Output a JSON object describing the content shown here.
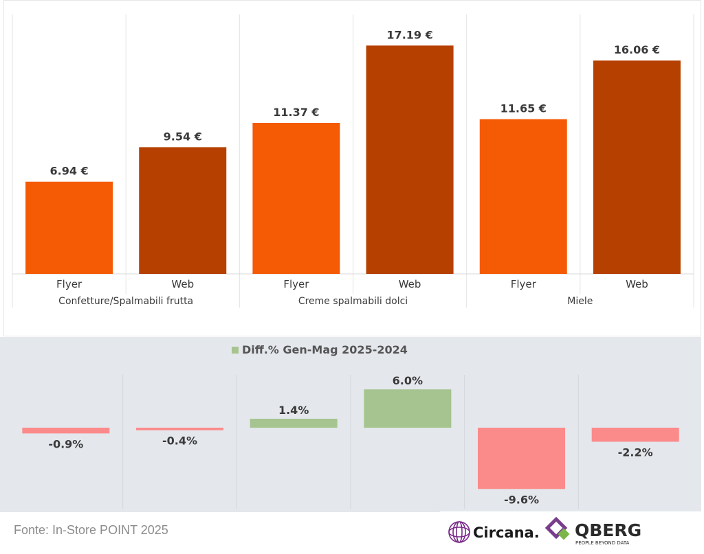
{
  "chart_data": [
    {
      "type": "bar",
      "title": "",
      "groups": [
        "Confetture/Spalmabili frutta",
        "Creme spalmabili dolci",
        "Miele"
      ],
      "categories": [
        "Flyer",
        "Web",
        "Flyer",
        "Web",
        "Flyer",
        "Web"
      ],
      "values": [
        6.94,
        9.54,
        11.37,
        17.19,
        11.65,
        16.06
      ],
      "value_labels": [
        "6.94 €",
        "9.54 €",
        "11.37 €",
        "17.19 €",
        "11.65 €",
        "16.06 €"
      ],
      "colors": {
        "Flyer": "#f55a05",
        "Web": "#b54000"
      },
      "ylim": [
        0,
        18.5
      ],
      "grid": "vertical group separators"
    },
    {
      "type": "bar",
      "legend": "Diff.% Gen-Mag 2025-2024",
      "values": [
        -0.9,
        -0.4,
        1.4,
        6.0,
        -9.6,
        -2.2
      ],
      "value_labels": [
        "-0.9%",
        "-0.4%",
        "1.4%",
        "6.0%",
        "-9.6%",
        "-2.2%"
      ],
      "colors": {
        "positive": "#a6c48f",
        "negative": "#fb8b8a"
      },
      "ylim": [
        -10.5,
        10
      ]
    }
  ],
  "footer": {
    "source": "Fonte: In-Store POINT 2025",
    "logo_circana": "Circana.",
    "logo_qberg": "QBERG",
    "logo_qberg_tagline": "PEOPLE BEYOND DATA"
  }
}
